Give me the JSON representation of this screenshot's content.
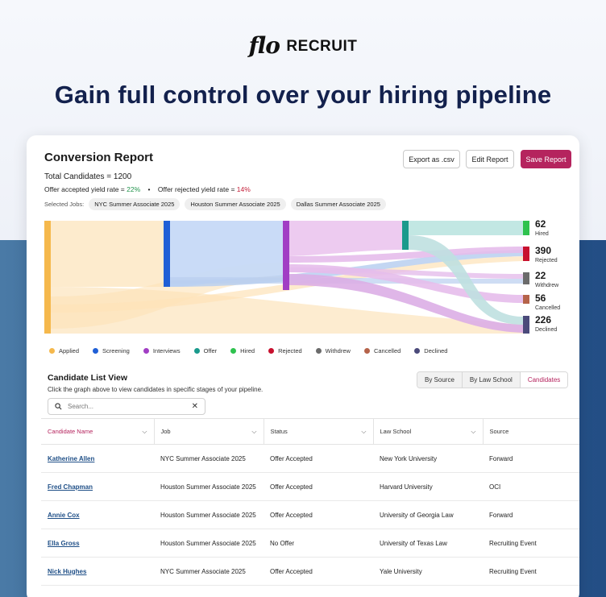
{
  "brand": {
    "mark": "flo",
    "word": "RECRUIT"
  },
  "headline": "Gain full control over your hiring pipeline",
  "report": {
    "title": "Conversion Report",
    "buttons": {
      "export": "Export as .csv",
      "edit": "Edit Report",
      "save": "Save Report"
    },
    "total": "Total Candidates = 1200",
    "accepted_label": "Offer accepted yield rate = ",
    "accepted_value": "22%",
    "rejected_label": "Offer rejected yield rate = ",
    "rejected_value": "14%",
    "selected_jobs_label": "Selected Jobs:",
    "selected_jobs": [
      "NYC Summer Associate 2025",
      "Houston Summer Associate 2025",
      "Dallas Summer Associate 2025"
    ]
  },
  "colors": {
    "Applied": "#f5b84c",
    "Screening": "#1f5fd6",
    "Interviews": "#a13ec4",
    "Offer": "#1a9a8c",
    "Hired": "#2ec24e",
    "Rejected": "#c8102e",
    "Withdrew": "#6b6b6b",
    "Cancelled": "#b5634a",
    "Declined": "#4b4a7a"
  },
  "legend": [
    "Applied",
    "Screening",
    "Interviews",
    "Offer",
    "Hired",
    "Rejected",
    "Withdrew",
    "Cancelled",
    "Declined"
  ],
  "outcomes": [
    {
      "value": "62",
      "label": "Hired"
    },
    {
      "value": "390",
      "label": "Rejected"
    },
    {
      "value": "22",
      "label": "Withdrew"
    },
    {
      "value": "56",
      "label": "Cancelled"
    },
    {
      "value": "226",
      "label": "Declined"
    }
  ],
  "list": {
    "title": "Candidate List View",
    "subtitle": "Click the graph above to view candidates in specific stages of your pipeline.",
    "views": [
      "By Source",
      "By Law School",
      "Candidates"
    ],
    "search_placeholder": "Search...",
    "columns": [
      "Candidate Name",
      "Job",
      "Status",
      "Law School",
      "Source"
    ],
    "rows": [
      [
        "Katherine Allen",
        "NYC Summer Associate 2025",
        "Offer Accepted",
        "New York University",
        "Forward"
      ],
      [
        "Fred Chapman",
        "Houston Summer Associate 2025",
        "Offer Accepted",
        "Harvard University",
        "OCI"
      ],
      [
        "Annie Cox",
        "Houston Summer Associate 2025",
        "Offer Accepted",
        "University of Georgia Law",
        "Forward"
      ],
      [
        "Ella Gross",
        "Houston Summer Associate 2025",
        "No Offer",
        "University of Texas Law",
        "Recruiting Event"
      ],
      [
        "Nick Hughes",
        "NYC Summer Associate 2025",
        "Offer Accepted",
        "Yale University",
        "Recruiting Event"
      ]
    ]
  }
}
